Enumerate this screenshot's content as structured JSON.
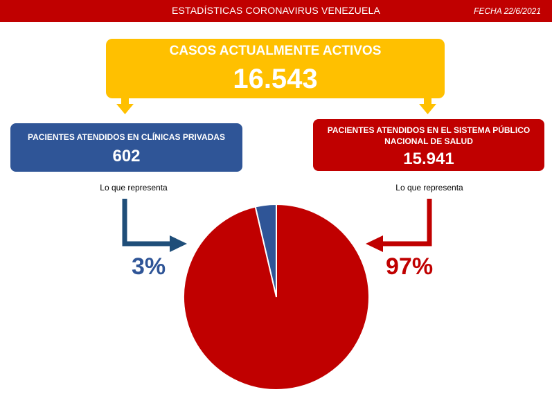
{
  "header": {
    "title": "ESTADÍSTICAS CORONAVIRUS VENEZUELA",
    "date": "FECHA 22/6/2021"
  },
  "total": {
    "label": "CASOS ACTUALMENTE ACTIVOS",
    "value": "16.543"
  },
  "private": {
    "label": "PACIENTES ATENDIDOS EN CLÍNICAS PRIVADAS",
    "value": "602",
    "represent": "Lo que representa",
    "pct": "3%"
  },
  "public": {
    "label": "PACIENTES ATENDIDOS EN EL SISTEMA PÚBLICO NACIONAL DE SALUD",
    "value": "15.941",
    "represent": "Lo que representa",
    "pct": "97%"
  },
  "colors": {
    "header": "#c00000",
    "total": "#ffc000",
    "private": "#2f5597",
    "public": "#c00000"
  },
  "chart_data": {
    "type": "pie",
    "slices": [
      {
        "label": "PACIENTES ATENDIDOS EN CLÍNICAS PRIVADAS",
        "value": 602,
        "percent": 3,
        "color": "#2f5597"
      },
      {
        "label": "PACIENTES ATENDIDOS EN EL SISTEMA PÚBLICO NACIONAL DE SALUD",
        "value": 15941,
        "percent": 97,
        "color": "#c00000"
      }
    ]
  }
}
